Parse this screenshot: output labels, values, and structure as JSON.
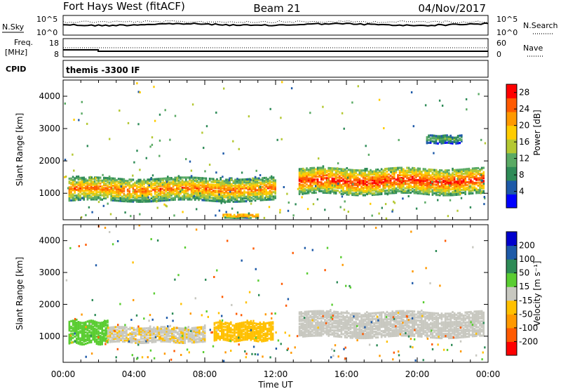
{
  "header": {
    "radar": "Fort Hays West (fitACF)",
    "beam": "Beam 21",
    "date": "04/Nov/2017"
  },
  "top_panels": {
    "nsky_label": "N.Sky",
    "nsearch_label": "N.Search",
    "noise_ticks": [
      "10^5",
      "10^0"
    ],
    "freq_label_1": "Freq.",
    "freq_label_2": "[MHz]",
    "freq_ticks": [
      "18",
      "8"
    ],
    "nave_label": "Nave",
    "nave_ticks": [
      "60",
      "0"
    ],
    "cpid_label": "CPID",
    "cpid_value": "themis -3300 IF"
  },
  "colors": {
    "power_scale": [
      "#0000ff",
      "#1e5aa8",
      "#2e8b57",
      "#5aaa64",
      "#b4c832",
      "#ffcc00",
      "#ff9900",
      "#ff5a00",
      "#ff0000"
    ],
    "velocity_scale": [
      "#ff0000",
      "#ff5a00",
      "#ff9900",
      "#ffc000",
      "#c8c8c0",
      "#5acd32",
      "#2e8b57",
      "#1e5aa8",
      "#0000cd"
    ]
  },
  "chart_data": [
    {
      "type": "heatmap",
      "title": "Power",
      "xlabel": "",
      "ylabel": "Slant Range [km]",
      "x_ticks": [
        "00:00",
        "04:00",
        "08:00",
        "12:00",
        "16:00",
        "20:00",
        "00:00"
      ],
      "y_ticks": [
        1000,
        2000,
        3000,
        4000
      ],
      "xlim_hours": [
        0,
        24
      ],
      "ylim_km": [
        180,
        4500
      ],
      "colorbar_label": "Power [dB]",
      "colorbar_ticks": [
        4,
        8,
        12,
        16,
        20,
        24,
        28
      ],
      "colorbar_range": [
        0,
        30
      ],
      "echo_bands": [
        {
          "t_start": 0.3,
          "t_end": 12.0,
          "range_low_km": 700,
          "range_high_km": 1500,
          "peak_db": 24
        },
        {
          "t_start": 13.3,
          "t_end": 23.8,
          "range_low_km": 900,
          "range_high_km": 1800,
          "peak_db": 28
        },
        {
          "t_start": 9.0,
          "t_end": 11.0,
          "range_low_km": 200,
          "range_high_km": 350,
          "peak_db": 26
        },
        {
          "t_start": 20.5,
          "t_end": 22.5,
          "range_low_km": 2500,
          "range_high_km": 2800,
          "peak_db": 12
        }
      ]
    },
    {
      "type": "heatmap",
      "title": "Velocity",
      "xlabel": "Time UT",
      "ylabel": "Slant Range [km]",
      "x_ticks": [
        "00:00",
        "04:00",
        "08:00",
        "12:00",
        "16:00",
        "20:00",
        "00:00"
      ],
      "y_ticks": [
        1000,
        2000,
        3000,
        4000
      ],
      "xlim_hours": [
        0,
        24
      ],
      "ylim_km": [
        180,
        4500
      ],
      "colorbar_label": "Velocity [m s⁻¹]",
      "colorbar_ticks": [
        200,
        100,
        50,
        15,
        -15,
        -50,
        -100,
        -200
      ],
      "colorbar_range": [
        -250,
        250
      ],
      "echo_bands": [
        {
          "t_start": 0.3,
          "t_end": 2.5,
          "range_low_km": 700,
          "range_high_km": 1500,
          "velocity": 30
        },
        {
          "t_start": 2.5,
          "t_end": 8.0,
          "range_low_km": 750,
          "range_high_km": 1300,
          "velocity": -10
        },
        {
          "t_start": 8.5,
          "t_end": 11.8,
          "range_low_km": 800,
          "range_high_km": 1450,
          "velocity": -40
        },
        {
          "t_start": 13.3,
          "t_end": 23.8,
          "range_low_km": 900,
          "range_high_km": 1800,
          "velocity": 0
        }
      ]
    }
  ]
}
